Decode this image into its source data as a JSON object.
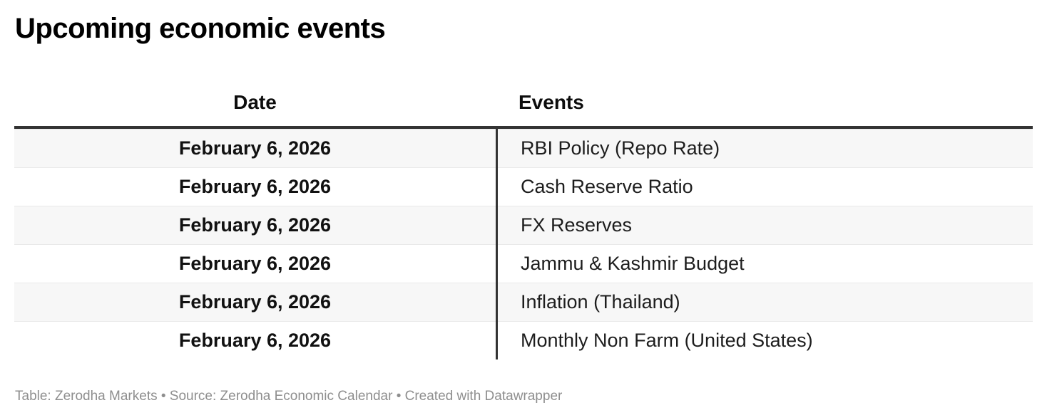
{
  "title": "Upcoming economic events",
  "chart_data": {
    "type": "table",
    "title": "Upcoming economic events",
    "columns": [
      "Date",
      "Events"
    ],
    "rows": [
      [
        "February 6, 2026",
        "RBI Policy (Repo Rate)"
      ],
      [
        "February 6, 2026",
        "Cash Reserve Ratio"
      ],
      [
        "February 6, 2026",
        "FX Reserves"
      ],
      [
        "February 6, 2026",
        "Jammu & Kashmir Budget"
      ],
      [
        "February 6, 2026",
        "Inflation (Thailand)"
      ],
      [
        "February 6, 2026",
        "Monthly Non Farm (United States)"
      ]
    ],
    "footer": "Table: Zerodha Markets • Source: Zerodha Economic Calendar • Created with Datawrapper",
    "layout": {
      "striped": true,
      "date_column_align": "center",
      "events_column_align": "left",
      "legend": "none",
      "grid": "row-separators"
    }
  },
  "colors": {
    "header_border": "#333333",
    "column_divider": "#333333",
    "alt_row_background": "#f7f7f7",
    "row_separator": "#e9e9e9",
    "title_text": "#000000",
    "body_text": "#1d1d1d",
    "footer_text": "#8e8e8e",
    "background": "#ffffff"
  }
}
